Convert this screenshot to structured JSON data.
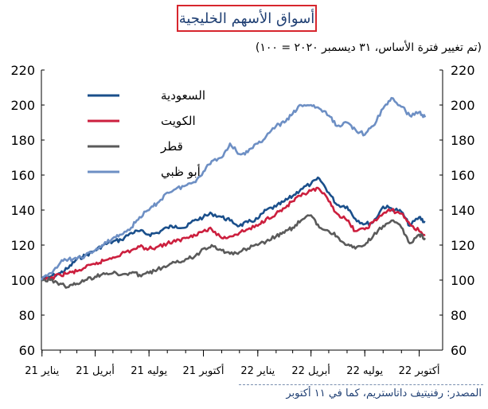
{
  "title": "أسواق الأسهم الخليجية",
  "subtitle": "(تم تغيير فترة الأساس، ٣١ ديسمبر ٢٠٢٠ = ١٠٠)",
  "source_label": "المصدر:",
  "source_text": "رفنيتيف داتاستريم، كما في ١١ أكتوبر",
  "colors": {
    "saudi": "#1a4f8b",
    "kuwait": "#cc1f3e",
    "qatar": "#5a5a5a",
    "abudhabi": "#6d8fc4",
    "title_border": "#d7262e",
    "title_text": "#1f3f73"
  },
  "chart_data": {
    "type": "line",
    "x_tick_labels": [
      "يناير 21",
      "أبريل 21",
      "يوليه 21",
      "أكتوبر 21",
      "يناير 22",
      "أبريل 22",
      "يوليه 22",
      "أكتوبر 22"
    ],
    "x_range": [
      "2020-12-31",
      "2022-10-11"
    ],
    "ylim": [
      60,
      220
    ],
    "y_ticks": [
      60,
      80,
      100,
      120,
      140,
      160,
      180,
      200,
      220
    ],
    "grid": false,
    "legend_position": "top-left",
    "series": [
      {
        "name": "السعودية",
        "color_key": "saudi",
        "points": [
          [
            "2020-12-31",
            100
          ],
          [
            "2021-01-15",
            102
          ],
          [
            "2021-02-01",
            104
          ],
          [
            "2021-02-15",
            107
          ],
          [
            "2021-03-01",
            112
          ],
          [
            "2021-03-15",
            114
          ],
          [
            "2021-04-01",
            117
          ],
          [
            "2021-04-15",
            120
          ],
          [
            "2021-05-01",
            122
          ],
          [
            "2021-05-15",
            123
          ],
          [
            "2021-06-01",
            127
          ],
          [
            "2021-06-15",
            128
          ],
          [
            "2021-07-01",
            126
          ],
          [
            "2021-07-15",
            127
          ],
          [
            "2021-08-01",
            130
          ],
          [
            "2021-08-15",
            131
          ],
          [
            "2021-09-01",
            130
          ],
          [
            "2021-09-15",
            134
          ],
          [
            "2021-10-01",
            136
          ],
          [
            "2021-10-15",
            138
          ],
          [
            "2021-11-01",
            136
          ],
          [
            "2021-11-15",
            134
          ],
          [
            "2021-12-01",
            131
          ],
          [
            "2021-12-15",
            133
          ],
          [
            "2022-01-01",
            135
          ],
          [
            "2022-01-15",
            140
          ],
          [
            "2022-02-01",
            142
          ],
          [
            "2022-02-15",
            145
          ],
          [
            "2022-03-01",
            148
          ],
          [
            "2022-03-15",
            152
          ],
          [
            "2022-04-01",
            155
          ],
          [
            "2022-04-15",
            158
          ],
          [
            "2022-05-01",
            150
          ],
          [
            "2022-05-15",
            143
          ],
          [
            "2022-06-01",
            142
          ],
          [
            "2022-06-15",
            135
          ],
          [
            "2022-07-01",
            132
          ],
          [
            "2022-07-15",
            133
          ],
          [
            "2022-08-01",
            142
          ],
          [
            "2022-08-15",
            141
          ],
          [
            "2022-09-01",
            139
          ],
          [
            "2022-09-15",
            131
          ],
          [
            "2022-10-01",
            136
          ],
          [
            "2022-10-11",
            133
          ]
        ]
      },
      {
        "name": "الكويت",
        "color_key": "kuwait",
        "points": [
          [
            "2020-12-31",
            100
          ],
          [
            "2021-01-15",
            101
          ],
          [
            "2021-02-01",
            103
          ],
          [
            "2021-02-15",
            104
          ],
          [
            "2021-03-01",
            105
          ],
          [
            "2021-03-15",
            107
          ],
          [
            "2021-04-01",
            109
          ],
          [
            "2021-04-15",
            111
          ],
          [
            "2021-05-01",
            113
          ],
          [
            "2021-05-15",
            115
          ],
          [
            "2021-06-01",
            117
          ],
          [
            "2021-06-15",
            119
          ],
          [
            "2021-07-01",
            118
          ],
          [
            "2021-07-15",
            119
          ],
          [
            "2021-08-01",
            121
          ],
          [
            "2021-08-15",
            122
          ],
          [
            "2021-09-01",
            124
          ],
          [
            "2021-09-15",
            126
          ],
          [
            "2021-10-01",
            128
          ],
          [
            "2021-10-15",
            129
          ],
          [
            "2021-11-01",
            124
          ],
          [
            "2021-11-15",
            125
          ],
          [
            "2021-12-01",
            127
          ],
          [
            "2021-12-15",
            129
          ],
          [
            "2022-01-01",
            131
          ],
          [
            "2022-01-15",
            135
          ],
          [
            "2022-02-01",
            138
          ],
          [
            "2022-02-15",
            141
          ],
          [
            "2022-03-01",
            145
          ],
          [
            "2022-03-15",
            148
          ],
          [
            "2022-04-01",
            151
          ],
          [
            "2022-04-15",
            152
          ],
          [
            "2022-05-01",
            145
          ],
          [
            "2022-05-15",
            138
          ],
          [
            "2022-06-01",
            134
          ],
          [
            "2022-06-15",
            128
          ],
          [
            "2022-07-01",
            129
          ],
          [
            "2022-07-15",
            133
          ],
          [
            "2022-08-01",
            138
          ],
          [
            "2022-08-15",
            140
          ],
          [
            "2022-09-01",
            138
          ],
          [
            "2022-09-15",
            132
          ],
          [
            "2022-10-01",
            128
          ],
          [
            "2022-10-11",
            126
          ]
        ]
      },
      {
        "name": "قطر",
        "color_key": "qatar",
        "points": [
          [
            "2020-12-31",
            100
          ],
          [
            "2021-01-15",
            100
          ],
          [
            "2021-02-01",
            98
          ],
          [
            "2021-02-15",
            96
          ],
          [
            "2021-03-01",
            98
          ],
          [
            "2021-03-15",
            100
          ],
          [
            "2021-04-01",
            102
          ],
          [
            "2021-04-15",
            104
          ],
          [
            "2021-05-01",
            104
          ],
          [
            "2021-05-15",
            103
          ],
          [
            "2021-06-01",
            104
          ],
          [
            "2021-06-15",
            103
          ],
          [
            "2021-07-01",
            104
          ],
          [
            "2021-07-15",
            106
          ],
          [
            "2021-08-01",
            108
          ],
          [
            "2021-08-15",
            110
          ],
          [
            "2021-09-01",
            112
          ],
          [
            "2021-09-15",
            113
          ],
          [
            "2021-10-01",
            118
          ],
          [
            "2021-10-15",
            120
          ],
          [
            "2021-11-01",
            117
          ],
          [
            "2021-11-15",
            115
          ],
          [
            "2021-12-01",
            116
          ],
          [
            "2021-12-15",
            118
          ],
          [
            "2022-01-01",
            120
          ],
          [
            "2022-01-15",
            122
          ],
          [
            "2022-02-01",
            125
          ],
          [
            "2022-02-15",
            127
          ],
          [
            "2022-03-01",
            130
          ],
          [
            "2022-03-15",
            134
          ],
          [
            "2022-04-01",
            137
          ],
          [
            "2022-04-15",
            130
          ],
          [
            "2022-05-01",
            128
          ],
          [
            "2022-05-15",
            125
          ],
          [
            "2022-06-01",
            120
          ],
          [
            "2022-06-15",
            118
          ],
          [
            "2022-07-01",
            120
          ],
          [
            "2022-07-15",
            125
          ],
          [
            "2022-08-01",
            131
          ],
          [
            "2022-08-15",
            134
          ],
          [
            "2022-09-01",
            130
          ],
          [
            "2022-09-15",
            121
          ],
          [
            "2022-10-01",
            126
          ],
          [
            "2022-10-11",
            124
          ]
        ]
      },
      {
        "name": "أبو ظبي",
        "color_key": "abudhabi",
        "points": [
          [
            "2020-12-31",
            100
          ],
          [
            "2021-01-15",
            104
          ],
          [
            "2021-02-01",
            110
          ],
          [
            "2021-02-15",
            112
          ],
          [
            "2021-03-01",
            112
          ],
          [
            "2021-03-15",
            114
          ],
          [
            "2021-04-01",
            117
          ],
          [
            "2021-04-15",
            120
          ],
          [
            "2021-05-01",
            124
          ],
          [
            "2021-05-15",
            126
          ],
          [
            "2021-06-01",
            130
          ],
          [
            "2021-06-15",
            136
          ],
          [
            "2021-07-01",
            140
          ],
          [
            "2021-07-15",
            144
          ],
          [
            "2021-08-01",
            150
          ],
          [
            "2021-08-15",
            152
          ],
          [
            "2021-09-01",
            154
          ],
          [
            "2021-09-15",
            156
          ],
          [
            "2021-10-01",
            162
          ],
          [
            "2021-10-15",
            168
          ],
          [
            "2021-11-01",
            170
          ],
          [
            "2021-11-15",
            178
          ],
          [
            "2021-12-01",
            172
          ],
          [
            "2021-12-15",
            173
          ],
          [
            "2022-01-01",
            178
          ],
          [
            "2022-01-15",
            182
          ],
          [
            "2022-02-01",
            188
          ],
          [
            "2022-02-15",
            190
          ],
          [
            "2022-03-01",
            195
          ],
          [
            "2022-03-15",
            200
          ],
          [
            "2022-04-01",
            200
          ],
          [
            "2022-04-15",
            198
          ],
          [
            "2022-05-01",
            194
          ],
          [
            "2022-05-15",
            188
          ],
          [
            "2022-06-01",
            190
          ],
          [
            "2022-06-15",
            186
          ],
          [
            "2022-07-01",
            183
          ],
          [
            "2022-07-15",
            188
          ],
          [
            "2022-08-01",
            198
          ],
          [
            "2022-08-15",
            204
          ],
          [
            "2022-09-01",
            199
          ],
          [
            "2022-09-15",
            194
          ],
          [
            "2022-10-01",
            196
          ],
          [
            "2022-10-11",
            193
          ]
        ]
      }
    ]
  }
}
